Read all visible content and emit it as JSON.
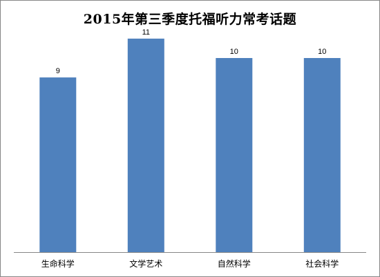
{
  "chart_data": {
    "type": "bar",
    "title": "2015年第三季度托福听力常考话题",
    "categories": [
      "生命科学",
      "文学艺术",
      "自然科学",
      "社会科学"
    ],
    "values": [
      9,
      11,
      10,
      10
    ],
    "xlabel": "",
    "ylabel": "",
    "ylim": [
      0,
      12
    ],
    "grid": false,
    "legend": "none",
    "data_labels": true,
    "colors": {
      "bar": "#4f81bd",
      "axis": "#868686",
      "border": "#868686"
    }
  }
}
